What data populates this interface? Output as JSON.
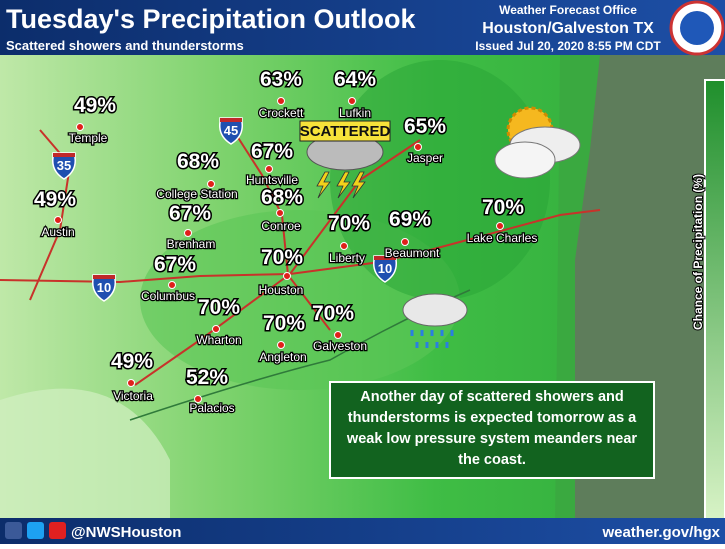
{
  "header": {
    "title": "Tuesday's Precipitation Outlook",
    "subtitle": "Scattered showers and thunderstorms",
    "office": "Weather Forecast Office",
    "location": "Houston/Galveston TX",
    "issued": "Issued Jul 20, 2020 8:55 PM CDT"
  },
  "legend": {
    "label": "Chance of Precipitation (%)"
  },
  "icons": {
    "storm_label": "SCATTERED"
  },
  "interstates": [
    "45",
    "35",
    "10",
    "10"
  ],
  "cities": [
    {
      "name": "Temple",
      "chance": "49%"
    },
    {
      "name": "Crockett",
      "chance": "63%"
    },
    {
      "name": "Lufkin",
      "chance": "64%"
    },
    {
      "name": "Jasper",
      "chance": "65%"
    },
    {
      "name": "College Station",
      "chance": "68%"
    },
    {
      "name": "Huntsville",
      "chance": "67%"
    },
    {
      "name": "Conroe",
      "chance": "68%"
    },
    {
      "name": "Liberty",
      "chance": "70%"
    },
    {
      "name": "Beaumont",
      "chance": "69%"
    },
    {
      "name": "Lake Charles",
      "chance": "70%"
    },
    {
      "name": "Austin",
      "chance": "49%"
    },
    {
      "name": "Brenham",
      "chance": "67%"
    },
    {
      "name": "Columbus",
      "chance": "67%"
    },
    {
      "name": "Houston",
      "chance": "70%"
    },
    {
      "name": "Wharton",
      "chance": "70%"
    },
    {
      "name": "Angleton",
      "chance": "70%"
    },
    {
      "name": "Galveston",
      "chance": "70%"
    },
    {
      "name": "Victoria",
      "chance": "49%"
    },
    {
      "name": "Palacios",
      "chance": "52%"
    }
  ],
  "summary": [
    "Another day of scattered showers and",
    "thunderstorms is expected tomorrow as a",
    "weak low pressure system meanders near",
    "the coast."
  ],
  "footer": {
    "handle": "@NWSHouston",
    "url": "weather.gov/hgx"
  }
}
